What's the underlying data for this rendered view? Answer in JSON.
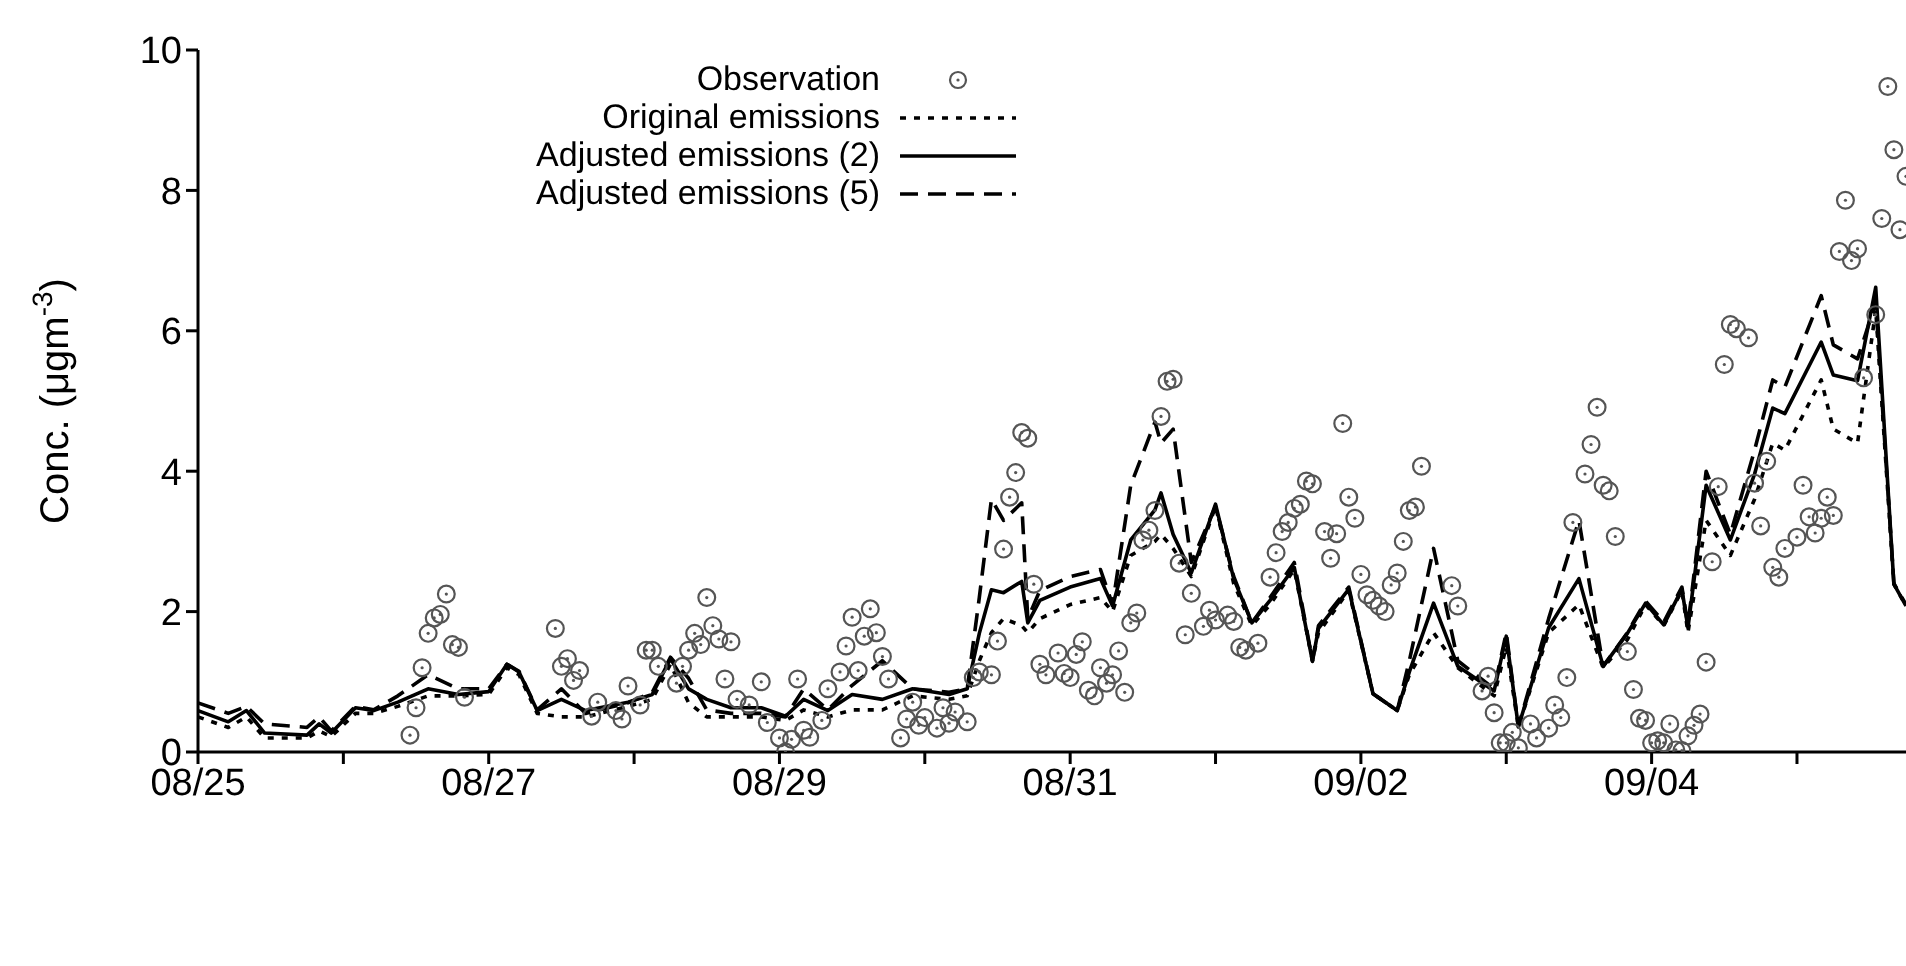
{
  "chart_data": {
    "type": "line",
    "ylabel": "Conc. (μgm$^{-3}$)",
    "xlim": [
      "--08-25T00:00",
      "--09-05T18:00"
    ],
    "xticks": [
      {
        "value": "--08-25",
        "label": "08/25"
      },
      {
        "value": "--08-26",
        "label": null
      },
      {
        "value": "--08-27",
        "label": "08/27"
      },
      {
        "value": "--08-28",
        "label": null
      },
      {
        "value": "--08-29",
        "label": "08/29"
      },
      {
        "value": "--08-30",
        "label": null
      },
      {
        "value": "--08-31",
        "label": "08/31"
      },
      {
        "value": "--09-01",
        "label": null
      },
      {
        "value": "--09-02",
        "label": "09/02"
      },
      {
        "value": "--09-03",
        "label": null
      },
      {
        "value": "--09-04",
        "label": "09/04"
      },
      {
        "value": "--09-05",
        "label": null
      }
    ],
    "ylim": [
      0,
      10
    ],
    "yticks": [
      0,
      2,
      4,
      6,
      8,
      10
    ],
    "legend": "top",
    "x": [
      "--08-25T00:00",
      "--08-25T05:00",
      "--08-25T08:00",
      "--08-25T11:00",
      "--08-25T18:00",
      "--08-25T20:00",
      "--08-25T22:00",
      "--08-26T02:00",
      "--08-26T05:00",
      "--08-26T09:00",
      "--08-26T14:00",
      "--08-26T19:00",
      "--08-27T00:00",
      "--08-27T03:00",
      "--08-27T05:00",
      "--08-27T08:00",
      "--08-27T12:00",
      "--08-27T16:00",
      "--08-27T23:00",
      "--08-28T03:00",
      "--08-28T06:00",
      "--08-28T09:00",
      "--08-28T12:00",
      "--08-28T16:00",
      "--08-28T21:00",
      "--08-29T01:00",
      "--08-29T04:00",
      "--08-29T08:00",
      "--08-29T12:00",
      "--08-29T17:00",
      "--08-29T22:00",
      "--08-30T04:00",
      "--08-30T07:00",
      "--08-30T09:00",
      "--08-30T11:00",
      "--08-30T13:00",
      "--08-30T16:00",
      "--08-30T17:00",
      "--08-30T19:00",
      "--08-31T00:00",
      "--08-31T05:00",
      "--08-31T07:00",
      "--08-31T10:00",
      "--08-31T14:00",
      "--08-31T15:00",
      "--08-31T17:00",
      "--08-31T20:00",
      "--09-01T00:00",
      "--09-01T03:00",
      "--09-01T06:00",
      "--09-01T09:00",
      "--09-01T13:00",
      "--09-01T16:00",
      "--09-01T17:00",
      "--09-01T22:00",
      "--09-02T02:00",
      "--09-02T06:00",
      "--09-02T08:00",
      "--09-02T12:00",
      "--09-02T16:00",
      "--09-02T22:00",
      "--09-03T00:00",
      "--09-03T02:00",
      "--09-03T07:00",
      "--09-03T12:00",
      "--09-03T16:00",
      "--09-03T20:00",
      "--09-03T23:00",
      "--09-04T02:00",
      "--09-04T05:00",
      "--09-04T06:00",
      "--09-04T09:00",
      "--09-04T13:00",
      "--09-04T17:00",
      "--09-04T20:00",
      "--09-04T22:00",
      "--09-05T04:00",
      "--09-05T06:00",
      "--09-05T10:00",
      "--09-05T13:00",
      "--09-05T16:00",
      "--09-05T18:00"
    ],
    "series": [
      {
        "name": "Observation",
        "type": "scatter",
        "marker": "circle",
        "color": "#555555",
        "x": [
          "--08-26T11:00",
          "--08-26T12:00",
          "--08-26T13:00",
          "--08-26T14:00",
          "--08-26T15:00",
          "--08-26T16:00",
          "--08-26T17:00",
          "--08-26T18:00",
          "--08-26T19:00",
          "--08-26T20:00",
          "--08-27T11:00",
          "--08-27T12:00",
          "--08-27T13:00",
          "--08-27T14:00",
          "--08-27T15:00",
          "--08-27T17:00",
          "--08-27T18:00",
          "--08-27T21:00",
          "--08-27T22:00",
          "--08-27T23:00",
          "--08-28T01:00",
          "--08-28T02:00",
          "--08-28T03:00",
          "--08-28T04:00",
          "--08-28T07:00",
          "--08-28T08:00",
          "--08-28T09:00",
          "--08-28T10:00",
          "--08-28T11:00",
          "--08-28T12:00",
          "--08-28T13:00",
          "--08-28T14:00",
          "--08-28T15:00",
          "--08-28T16:00",
          "--08-28T17:00",
          "--08-28T19:00",
          "--08-28T21:00",
          "--08-28T22:00",
          "--08-29T00:00",
          "--08-29T01:00",
          "--08-29T02:00",
          "--08-29T03:00",
          "--08-29T04:00",
          "--08-29T05:00",
          "--08-29T07:00",
          "--08-29T08:00",
          "--08-29T10:00",
          "--08-29T11:00",
          "--08-29T12:00",
          "--08-29T13:00",
          "--08-29T14:00",
          "--08-29T15:00",
          "--08-29T16:00",
          "--08-29T17:00",
          "--08-29T18:00",
          "--08-29T20:00",
          "--08-29T21:00",
          "--08-29T22:00",
          "--08-29T23:00",
          "--08-30T00:00",
          "--08-30T02:00",
          "--08-30T03:00",
          "--08-30T04:00",
          "--08-30T05:00",
          "--08-30T07:00",
          "--08-30T08:00",
          "--08-30T09:00",
          "--08-30T11:00",
          "--08-30T12:00",
          "--08-30T13:00",
          "--08-30T14:00",
          "--08-30T15:00",
          "--08-30T16:00",
          "--08-30T17:00",
          "--08-30T18:00",
          "--08-30T19:00",
          "--08-30T20:00",
          "--08-30T22:00",
          "--08-30T23:00",
          "--08-31T00:00",
          "--08-31T01:00",
          "--08-31T02:00",
          "--08-31T03:00",
          "--08-31T04:00",
          "--08-31T05:00",
          "--08-31T06:00",
          "--08-31T07:00",
          "--08-31T08:00",
          "--08-31T09:00",
          "--08-31T10:00",
          "--08-31T11:00",
          "--08-31T12:00",
          "--08-31T13:00",
          "--08-31T14:00",
          "--08-31T15:00",
          "--08-31T16:00",
          "--08-31T17:00",
          "--08-31T18:00",
          "--08-31T19:00",
          "--08-31T20:00",
          "--08-31T22:00",
          "--08-31T23:00",
          "--09-01T00:00",
          "--09-01T02:00",
          "--09-01T03:00",
          "--09-01T04:00",
          "--09-01T05:00",
          "--09-01T07:00",
          "--09-01T09:00",
          "--09-01T10:00",
          "--09-01T11:00",
          "--09-01T12:00",
          "--09-01T13:00",
          "--09-01T14:00",
          "--09-01T15:00",
          "--09-01T16:00",
          "--09-01T18:00",
          "--09-01T19:00",
          "--09-01T20:00",
          "--09-01T21:00",
          "--09-01T22:00",
          "--09-01T23:00",
          "--09-02T00:00",
          "--09-02T01:00",
          "--09-02T02:00",
          "--09-02T03:00",
          "--09-02T04:00",
          "--09-02T05:00",
          "--09-02T06:00",
          "--09-02T07:00",
          "--09-02T08:00",
          "--09-02T09:00",
          "--09-02T10:00",
          "--09-02T15:00",
          "--09-02T16:00",
          "--09-02T20:00",
          "--09-02T21:00",
          "--09-02T22:00",
          "--09-02T23:00",
          "--09-03T00:00",
          "--09-03T01:00",
          "--09-03T02:00",
          "--09-03T04:00",
          "--09-03T05:00",
          "--09-03T07:00",
          "--09-03T08:00",
          "--09-03T09:00",
          "--09-03T10:00",
          "--09-03T11:00",
          "--09-03T13:00",
          "--09-03T14:00",
          "--09-03T15:00",
          "--09-03T16:00",
          "--09-03T17:00",
          "--09-03T18:00",
          "--09-03T20:00",
          "--09-03T21:00",
          "--09-03T22:00",
          "--09-03T23:00",
          "--09-04T00:00",
          "--09-04T01:00",
          "--09-04T02:00",
          "--09-04T03:00",
          "--09-04T04:00",
          "--09-04T05:00",
          "--09-04T06:00",
          "--09-04T07:00",
          "--09-04T08:00",
          "--09-04T09:00",
          "--09-04T10:00",
          "--09-04T11:00",
          "--09-04T12:00",
          "--09-04T13:00",
          "--09-04T14:00",
          "--09-04T16:00",
          "--09-04T17:00",
          "--09-04T18:00",
          "--09-04T19:00",
          "--09-04T20:00",
          "--09-04T21:00",
          "--09-04T22:00",
          "--09-05T00:00",
          "--09-05T01:00",
          "--09-05T02:00",
          "--09-05T03:00",
          "--09-05T04:00",
          "--09-05T05:00",
          "--09-05T06:00",
          "--09-05T07:00",
          "--09-05T08:00",
          "--09-05T09:00",
          "--09-05T10:00",
          "--09-05T11:00",
          "--09-05T13:00",
          "--09-05T14:00",
          "--09-05T15:00",
          "--09-05T16:00",
          "--09-05T17:00",
          "--09-05T18:00"
        ],
        "values": [
          0.24,
          0.63,
          1.2,
          1.69,
          1.91,
          1.96,
          2.25,
          1.53,
          1.49,
          0.78,
          1.76,
          1.22,
          1.33,
          1.02,
          1.16,
          0.51,
          0.71,
          0.59,
          0.47,
          0.94,
          0.67,
          1.45,
          1.45,
          1.22,
          0.98,
          1.22,
          1.45,
          1.69,
          1.53,
          2.2,
          1.8,
          1.61,
          1.04,
          1.57,
          0.75,
          0.67,
          1.0,
          0.42,
          0.2,
          0,
          0.18,
          1.04,
          0.31,
          0.21,
          0.45,
          0.9,
          1.14,
          1.51,
          1.92,
          1.16,
          1.65,
          2.04,
          1.7,
          1.36,
          1.04,
          0.2,
          0.47,
          0.71,
          0.38,
          0.49,
          0.34,
          0.63,
          0.41,
          0.57,
          0.43,
          1.06,
          1.14,
          1.1,
          1.58,
          2.89,
          3.63,
          3.98,
          4.55,
          4.47,
          2.39,
          1.25,
          1.1,
          1.41,
          1.12,
          1.06,
          1.39,
          1.57,
          0.88,
          0.8,
          1.2,
          0.98,
          1.1,
          1.44,
          0.85,
          1.84,
          1.98,
          3.02,
          3.16,
          3.44,
          4.78,
          5.28,
          5.31,
          2.69,
          1.67,
          2.26,
          1.79,
          2.02,
          1.88,
          1.95,
          1.86,
          1.49,
          1.45,
          1.55,
          2.49,
          2.84,
          3.14,
          3.27,
          3.47,
          3.53,
          3.86,
          3.82,
          3.14,
          2.76,
          3.11,
          4.68,
          3.63,
          3.33,
          2.53,
          2.24,
          2.16,
          2.08,
          2.0,
          2.38,
          2.55,
          3.0,
          3.44,
          3.49,
          4.07,
          2.37,
          2.08,
          0.87,
          1.08,
          0.56,
          0.13,
          0.13,
          0.28,
          0.06,
          0.4,
          0.2,
          0.34,
          0.67,
          0.49,
          1.06,
          3.27,
          3.96,
          4.38,
          4.91,
          3.8,
          3.72,
          3.07,
          1.43,
          0.89,
          0.48,
          0.45,
          0.13,
          0.16,
          0.13,
          0.4,
          0.03,
          0.02,
          0.23,
          0.38,
          0.54,
          1.28,
          2.71,
          3.78,
          5.52,
          6.09,
          6.03,
          5.9,
          3.83,
          3.22,
          4.14,
          2.63,
          2.49,
          2.9,
          3.06,
          3.8,
          3.35,
          3.12,
          3.33,
          3.63,
          3.37,
          7.13,
          7.86,
          7.0,
          7.17,
          5.33,
          6.23,
          7.6,
          9.48,
          8.58,
          7.44,
          8.2
        ]
      },
      {
        "name": "Original emissions",
        "marker": "none",
        "line_style": "dotted",
        "color": "#000000",
        "values": [
          0.5,
          0.35,
          0.5,
          0.2,
          0.2,
          0.3,
          0.22,
          0.55,
          0.55,
          0.65,
          0.8,
          0.8,
          0.82,
          1.2,
          1.1,
          0.55,
          0.5,
          0.5,
          0.65,
          0.75,
          1.25,
          0.7,
          0.5,
          0.5,
          0.5,
          0.45,
          0.6,
          0.5,
          0.6,
          0.6,
          0.8,
          0.75,
          0.8,
          1.3,
          1.7,
          1.9,
          1.8,
          1.7,
          1.9,
          2.1,
          2.2,
          2.0,
          2.8,
          3.0,
          3.1,
          2.9,
          2.5,
          3.5,
          2.4,
          1.8,
          2.1,
          2.6,
          1.3,
          1.7,
          2.3,
          0.83,
          0.59,
          1.1,
          1.7,
          1.2,
          0.8,
          1.5,
          0.36,
          1.7,
          2.1,
          1.2,
          1.6,
          2.1,
          1.8,
          2.3,
          1.7,
          3.3,
          2.8,
          3.6,
          4.4,
          4.3,
          5.3,
          4.6,
          4.4,
          6.3,
          2.39,
          2.08
        ]
      },
      {
        "name": "Adjusted emissions (2)",
        "marker": "none",
        "line_style": "solid",
        "color": "#000000",
        "values": [
          0.59,
          0.43,
          0.59,
          0.27,
          0.24,
          0.4,
          0.27,
          0.63,
          0.59,
          0.71,
          0.9,
          0.82,
          0.86,
          1.25,
          1.14,
          0.59,
          0.75,
          0.59,
          0.71,
          0.82,
          1.33,
          0.9,
          0.75,
          0.63,
          0.63,
          0.51,
          0.75,
          0.59,
          0.82,
          0.75,
          0.9,
          0.82,
          0.9,
          1.69,
          2.31,
          2.27,
          2.43,
          1.84,
          2.16,
          2.35,
          2.47,
          2.08,
          3.02,
          3.45,
          3.69,
          3.1,
          2.55,
          3.53,
          2.47,
          1.84,
          2.16,
          2.63,
          1.29,
          1.76,
          2.32,
          0.83,
          0.59,
          1.14,
          2.12,
          1.22,
          0.87,
          1.65,
          0.36,
          1.77,
          2.47,
          1.22,
          1.69,
          2.12,
          1.81,
          2.32,
          1.77,
          3.8,
          3.02,
          3.96,
          4.9,
          4.82,
          5.84,
          5.37,
          5.29,
          6.62,
          2.39,
          2.08
        ]
      },
      {
        "name": "Adjusted emissions (5)",
        "marker": "none",
        "line_style": "dashed",
        "color": "#000000",
        "values": [
          0.7,
          0.55,
          0.65,
          0.4,
          0.35,
          0.5,
          0.3,
          0.65,
          0.6,
          0.8,
          1.1,
          0.9,
          0.9,
          1.25,
          1.15,
          0.6,
          0.9,
          0.55,
          0.7,
          0.85,
          1.35,
          1.05,
          0.6,
          0.55,
          0.55,
          0.5,
          0.9,
          0.6,
          0.95,
          1.3,
          0.9,
          0.85,
          0.9,
          2.2,
          3.6,
          3.3,
          3.55,
          1.9,
          2.3,
          2.5,
          2.6,
          2.1,
          3.8,
          4.7,
          4.4,
          4.6,
          2.7,
          3.5,
          2.5,
          1.84,
          2.2,
          2.7,
          1.3,
          1.8,
          2.35,
          0.83,
          0.59,
          1.3,
          2.9,
          1.3,
          0.9,
          1.7,
          0.36,
          1.9,
          3.3,
          1.22,
          1.7,
          2.15,
          1.85,
          2.35,
          1.8,
          4.0,
          3.1,
          4.3,
          5.3,
          5.2,
          6.5,
          5.8,
          5.6,
          6.4,
          2.4,
          2.1
        ]
      }
    ]
  }
}
